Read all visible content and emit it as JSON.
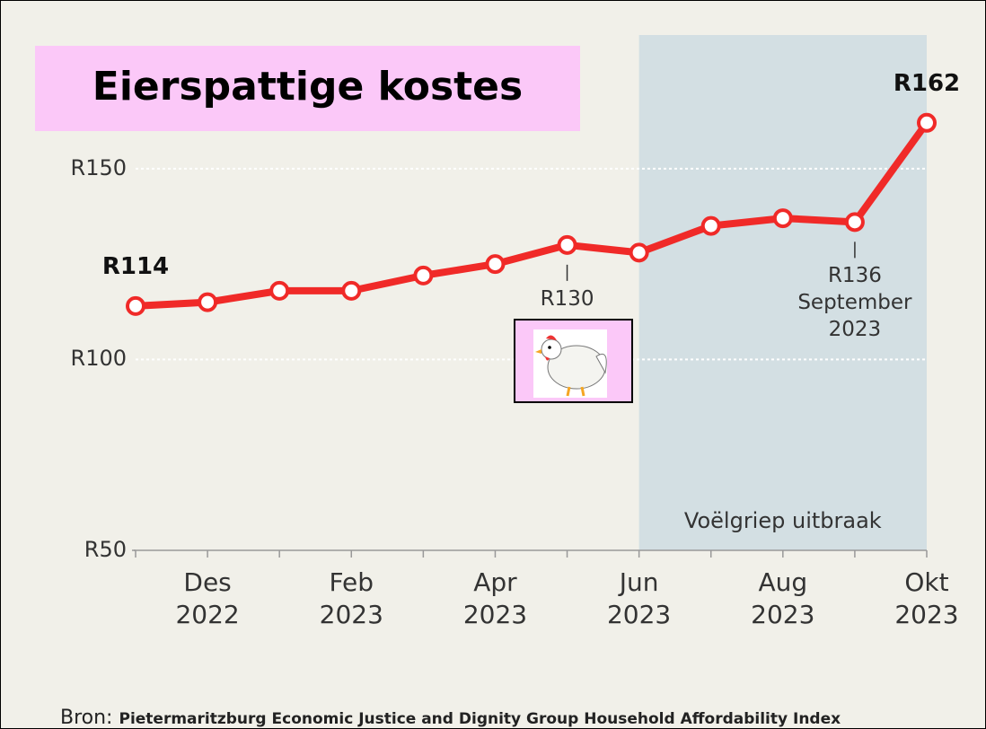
{
  "title": "Eierspattige kostes",
  "source": {
    "prefix": "Bron:",
    "text": "Pietermaritzburg Economic Justice and Dignity Group Household Affordability Index"
  },
  "chart_data": {
    "type": "line",
    "categories": [
      null,
      "Des 2022",
      null,
      "Feb 2023",
      null,
      "Apr 2023",
      null,
      "Jun 2023",
      null,
      "Aug 2023",
      null,
      "Okt 2023"
    ],
    "values": [
      114,
      115,
      118,
      118,
      122,
      125,
      130,
      128,
      135,
      137,
      136,
      162
    ],
    "color": "#f02a28",
    "ylim": [
      50,
      185
    ],
    "yticks": [
      {
        "value": 50,
        "label": "R50"
      },
      {
        "value": 100,
        "label": "R100"
      },
      {
        "value": 150,
        "label": "R150"
      }
    ],
    "grid": true,
    "highlight": {
      "start": 7,
      "end": 11,
      "label": "Voëlgriep uitbraak",
      "color": "#d3dfe3"
    },
    "annotations": [
      {
        "index": 0,
        "text": "R114",
        "bold": true,
        "position": "above"
      },
      {
        "index": 6,
        "text": "R130",
        "bold": false,
        "position": "below"
      },
      {
        "index": 10,
        "text": "R136 September 2023",
        "bold": false,
        "position": "below"
      },
      {
        "index": 11,
        "text": "R162",
        "bold": true,
        "position": "above"
      }
    ]
  }
}
